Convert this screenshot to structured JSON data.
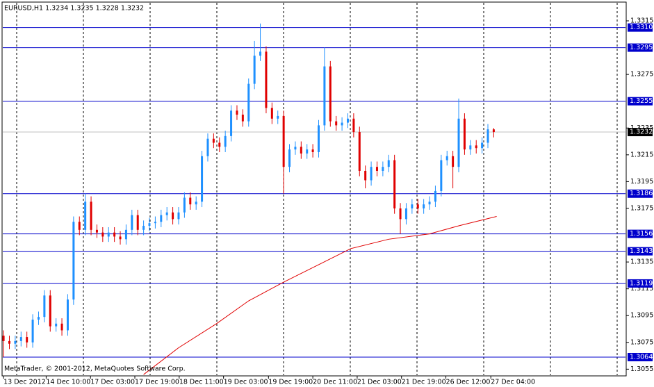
{
  "chart_data": {
    "type": "candlestick",
    "title": "EURUSD,H1  1.3234 1.3235 1.3228 1.3232",
    "footer": "MetaTrader, © 2001-2012, MetaQuotes Software Corp.",
    "up_color": "#1e90ff",
    "down_color": "#e00000",
    "open": [
      1.308,
      1.3076,
      1.3074,
      1.3076,
      1.3079,
      1.3075,
      1.3092,
      1.3094,
      1.311,
      1.3087,
      1.3089,
      1.3084,
      1.3107,
      1.3165,
      1.3159,
      1.318,
      1.3159,
      1.3157,
      1.3154,
      1.3157,
      1.3154,
      1.3152,
      1.3159,
      1.317,
      1.3159,
      1.3162,
      1.3164,
      1.3165,
      1.317,
      1.3172,
      1.3167,
      1.3172,
      1.3183,
      1.3178,
      1.318,
      1.3214,
      1.3227,
      1.3224,
      1.3221,
      1.3229,
      1.3248,
      1.3245,
      1.324,
      1.3268,
      1.3289,
      1.3292,
      1.325,
      1.3242,
      1.3244,
      1.3206,
      1.3219,
      1.3221,
      1.3216,
      1.3219,
      1.3217,
      1.3237,
      1.3281,
      1.324,
      1.3237,
      1.3239,
      1.3242,
      1.3232,
      1.3203,
      1.3196,
      1.3206,
      1.3203,
      1.3206,
      1.3211,
      1.3175,
      1.3167,
      1.3175,
      1.3178,
      1.3175,
      1.3178,
      1.318,
      1.3188,
      1.3211,
      1.3214,
      1.3206,
      1.3242,
      1.3219,
      1.3222,
      1.322,
      1.3224,
      1.3234
    ],
    "high": [
      1.3084,
      1.308,
      1.308,
      1.3083,
      1.3083,
      1.3096,
      1.3098,
      1.3114,
      1.3114,
      1.3093,
      1.3093,
      1.3111,
      1.3169,
      1.3169,
      1.3186,
      1.3184,
      1.3163,
      1.3161,
      1.3161,
      1.3161,
      1.3158,
      1.3163,
      1.3174,
      1.3174,
      1.3166,
      1.3168,
      1.3169,
      1.3174,
      1.3176,
      1.3176,
      1.3176,
      1.3187,
      1.3187,
      1.3184,
      1.3218,
      1.3231,
      1.3231,
      1.3228,
      1.3233,
      1.3252,
      1.3252,
      1.3249,
      1.3272,
      1.33,
      1.3313,
      1.3296,
      1.3254,
      1.3248,
      1.3248,
      1.3223,
      1.3225,
      1.3225,
      1.3223,
      1.3223,
      1.3241,
      1.3295,
      1.3285,
      1.3244,
      1.3243,
      1.3246,
      1.3246,
      1.3236,
      1.3207,
      1.321,
      1.321,
      1.321,
      1.3215,
      1.3215,
      1.3179,
      1.3179,
      1.3182,
      1.3182,
      1.3182,
      1.3184,
      1.3192,
      1.3215,
      1.3218,
      1.3218,
      1.3257,
      1.3246,
      1.3226,
      1.3226,
      1.3228,
      1.3238,
      1.3235
    ],
    "low": [
      1.3064,
      1.307,
      1.307,
      1.3072,
      1.3071,
      1.3071,
      1.3088,
      1.309,
      1.3083,
      1.3083,
      1.308,
      1.308,
      1.3103,
      1.3155,
      1.3155,
      1.3155,
      1.3153,
      1.315,
      1.315,
      1.315,
      1.3148,
      1.3148,
      1.3155,
      1.3155,
      1.3155,
      1.3158,
      1.316,
      1.3161,
      1.3166,
      1.3163,
      1.3163,
      1.3168,
      1.3174,
      1.3174,
      1.3176,
      1.321,
      1.322,
      1.3217,
      1.3217,
      1.3225,
      1.3241,
      1.3236,
      1.3236,
      1.3264,
      1.3285,
      1.3246,
      1.3238,
      1.3238,
      1.3186,
      1.3202,
      1.3215,
      1.3212,
      1.3212,
      1.3213,
      1.3213,
      1.3233,
      1.3236,
      1.3233,
      1.3233,
      1.3235,
      1.3228,
      1.3199,
      1.319,
      1.3192,
      1.3199,
      1.3199,
      1.3202,
      1.3171,
      1.3156,
      1.3163,
      1.3171,
      1.3171,
      1.3171,
      1.3174,
      1.3176,
      1.3184,
      1.3207,
      1.319,
      1.3202,
      1.3215,
      1.3215,
      1.3216,
      1.3216,
      1.322,
      1.3228
    ],
    "close": [
      1.3076,
      1.3074,
      1.3076,
      1.3079,
      1.3075,
      1.3092,
      1.3094,
      1.311,
      1.3087,
      1.3089,
      1.3084,
      1.3107,
      1.3165,
      1.3159,
      1.318,
      1.3159,
      1.3157,
      1.3154,
      1.3157,
      1.3154,
      1.3152,
      1.3159,
      1.317,
      1.3159,
      1.3162,
      1.3164,
      1.3165,
      1.317,
      1.3172,
      1.3167,
      1.3172,
      1.3183,
      1.3178,
      1.318,
      1.3214,
      1.3227,
      1.3224,
      1.3221,
      1.3229,
      1.3248,
      1.3245,
      1.324,
      1.3268,
      1.3289,
      1.3292,
      1.325,
      1.3242,
      1.3244,
      1.3206,
      1.3219,
      1.3221,
      1.3216,
      1.3219,
      1.3217,
      1.3237,
      1.3281,
      1.324,
      1.3237,
      1.3239,
      1.3242,
      1.3232,
      1.3203,
      1.3196,
      1.3206,
      1.3203,
      1.3206,
      1.3211,
      1.3175,
      1.3167,
      1.3175,
      1.3178,
      1.3175,
      1.3178,
      1.318,
      1.3188,
      1.3211,
      1.3214,
      1.3206,
      1.3242,
      1.3219,
      1.3222,
      1.322,
      1.3224,
      1.3234,
      1.3232
    ],
    "ma": {
      "color": "#e00000",
      "x": [
        24,
        30,
        36.5,
        42,
        48,
        54,
        59.5,
        66,
        73,
        78,
        84.5
      ],
      "values": [
        1.3051,
        1.3071,
        1.3089,
        1.3106,
        1.312,
        1.3133,
        1.3145,
        1.3152,
        1.3156,
        1.3162,
        1.3169
      ]
    },
    "levels": {
      "color": "#0000cc",
      "values": [
        {
          "value": 1.331,
          "label": "1.3310"
        },
        1.3295,
        1.3255,
        1.3186,
        1.3156,
        1.3143,
        1.3119,
        1.3064
      ]
    },
    "current_price": {
      "value": 1.3232,
      "color": "#c0c0c0"
    },
    "xlim": [
      -0.25,
      106.7
    ],
    "ylim": [
      1.305,
      1.3329
    ],
    "yticks": [
      1.3315,
      1.3275,
      1.3235,
      1.3215,
      1.3195,
      1.3175,
      1.3135,
      1.3115,
      1.3095,
      1.3075,
      1.3055
    ],
    "xticks": [
      {
        "value": 0,
        "label": "13 Dec 2012"
      },
      {
        "value": 7.3,
        "label": "14 Dec 10:00"
      },
      {
        "value": 14.9,
        "label": "17 Dec 03:00"
      },
      {
        "value": 22.5,
        "label": "17 Dec 19:00"
      },
      {
        "value": 30.1,
        "label": "18 Dec 11:00"
      },
      {
        "value": 37.7,
        "label": "19 Dec 03:00"
      },
      {
        "value": 45.4,
        "label": "19 Dec 19:00"
      },
      {
        "value": 53,
        "label": "20 Dec 11:00"
      },
      {
        "value": 60.6,
        "label": "21 Dec 03:00"
      },
      {
        "value": 68.2,
        "label": "21 Dec 19:00"
      },
      {
        "value": 75.8,
        "label": "26 Dec 12:00"
      },
      {
        "value": 83.5,
        "label": "27 Dec 04:00"
      }
    ],
    "grid": true
  }
}
